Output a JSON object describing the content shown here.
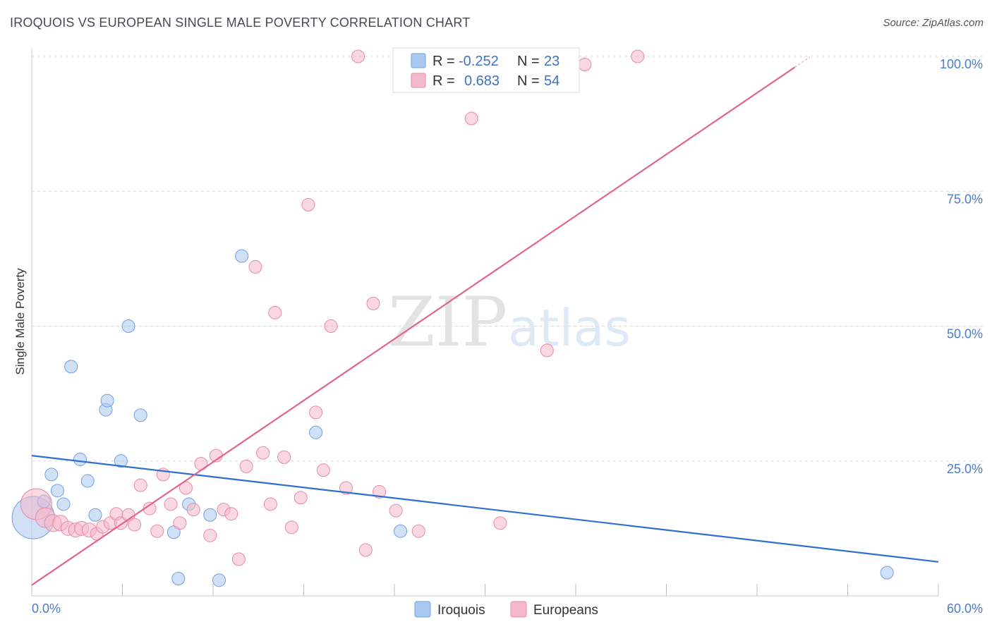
{
  "title": "IROQUOIS VS EUROPEAN SINGLE MALE POVERTY CORRELATION CHART",
  "source": "Source: ZipAtlas.com",
  "legend": {
    "rows": [
      {
        "r_label": "R =",
        "r_value": "-0.252",
        "n_label": "N =",
        "n_value": "23",
        "color": "#a9c8f0"
      },
      {
        "r_label": "R =",
        "r_value": "0.683",
        "n_label": "N =",
        "n_value": "54",
        "color": "#f6b8cb"
      }
    ]
  },
  "watermark": {
    "zip": "ZIP",
    "atlas": "atlas"
  },
  "chart_data": {
    "type": "scatter",
    "title": "IROQUOIS VS EUROPEAN SINGLE MALE POVERTY CORRELATION CHART",
    "xlabel": "",
    "ylabel": "Single Male Poverty",
    "xlim": [
      0,
      60
    ],
    "ylim": [
      0,
      100
    ],
    "x_tick_labels": [
      "0.0%",
      "60.0%"
    ],
    "y_tick_labels": [
      "25.0%",
      "50.0%",
      "75.0%",
      "100.0%"
    ],
    "y_ticks": [
      25,
      50,
      75,
      100
    ],
    "legend_position": "bottom-center",
    "series": [
      {
        "name": "Iroquois",
        "color": "#a9c8f0",
        "edge": "#6f9fdc",
        "trend_color": "#2f6fce",
        "trend": [
          [
            0,
            26.0
          ],
          [
            60,
            6.3
          ]
        ],
        "points": [
          [
            0.1,
            14.5
          ],
          [
            0.8,
            17.5
          ],
          [
            1.3,
            22.5
          ],
          [
            1.7,
            19.5
          ],
          [
            2.1,
            17.0
          ],
          [
            2.6,
            42.5
          ],
          [
            3.2,
            25.3
          ],
          [
            3.7,
            21.3
          ],
          [
            4.2,
            15.0
          ],
          [
            4.9,
            34.5
          ],
          [
            5.0,
            36.2
          ],
          [
            5.9,
            25.0
          ],
          [
            6.4,
            50.0
          ],
          [
            7.2,
            33.5
          ],
          [
            9.4,
            11.8
          ],
          [
            9.7,
            3.2
          ],
          [
            10.4,
            17.0
          ],
          [
            11.8,
            15.0
          ],
          [
            12.4,
            2.9
          ],
          [
            13.9,
            63.0
          ],
          [
            18.8,
            30.3
          ],
          [
            24.4,
            12.0
          ],
          [
            56.6,
            4.3
          ]
        ],
        "sizes": [
          30,
          9,
          9,
          9,
          9,
          9,
          9,
          9,
          9,
          9,
          9,
          9,
          9,
          9,
          9,
          9,
          9,
          9,
          9,
          9,
          9,
          9,
          9
        ]
      },
      {
        "name": "Europeans",
        "color": "#f6b8cb",
        "edge": "#e68aa8",
        "trend_color": "#e0648c",
        "trend": [
          [
            0,
            2.0
          ],
          [
            50.5,
            98.0
          ]
        ],
        "points": [
          [
            0.3,
            17.0
          ],
          [
            0.9,
            14.5
          ],
          [
            1.4,
            13.5
          ],
          [
            1.9,
            13.5
          ],
          [
            2.4,
            12.5
          ],
          [
            2.9,
            12.2
          ],
          [
            3.3,
            12.5
          ],
          [
            3.8,
            12.2
          ],
          [
            4.3,
            11.5
          ],
          [
            4.7,
            12.8
          ],
          [
            5.2,
            13.5
          ],
          [
            5.6,
            15.2
          ],
          [
            5.9,
            13.5
          ],
          [
            6.4,
            15.0
          ],
          [
            6.8,
            13.2
          ],
          [
            7.2,
            20.5
          ],
          [
            7.8,
            16.2
          ],
          [
            8.3,
            12.0
          ],
          [
            8.7,
            22.5
          ],
          [
            9.2,
            17.0
          ],
          [
            9.8,
            13.5
          ],
          [
            10.2,
            20.0
          ],
          [
            10.7,
            16.0
          ],
          [
            11.2,
            24.5
          ],
          [
            11.8,
            11.2
          ],
          [
            12.2,
            26.0
          ],
          [
            12.7,
            16.0
          ],
          [
            13.2,
            15.2
          ],
          [
            13.7,
            6.8
          ],
          [
            14.2,
            24.0
          ],
          [
            14.8,
            61.0
          ],
          [
            15.3,
            26.5
          ],
          [
            15.8,
            17.0
          ],
          [
            16.1,
            52.5
          ],
          [
            16.7,
            25.7
          ],
          [
            17.2,
            12.7
          ],
          [
            17.8,
            18.2
          ],
          [
            18.3,
            72.5
          ],
          [
            18.8,
            34.0
          ],
          [
            19.3,
            23.3
          ],
          [
            19.8,
            50.0
          ],
          [
            20.8,
            20.0
          ],
          [
            21.6,
            100.0
          ],
          [
            22.1,
            8.5
          ],
          [
            22.6,
            54.2
          ],
          [
            23.0,
            19.3
          ],
          [
            24.1,
            15.8
          ],
          [
            25.6,
            12.0
          ],
          [
            29.1,
            88.5
          ],
          [
            31.0,
            13.5
          ],
          [
            31.5,
            100.0
          ],
          [
            34.1,
            45.5
          ],
          [
            36.6,
            98.5
          ],
          [
            40.1,
            100.0
          ]
        ],
        "sizes": [
          22,
          14,
          12,
          11,
          10,
          10,
          10,
          10,
          9,
          9,
          9,
          9,
          9,
          9,
          9,
          9,
          9,
          9,
          9,
          9,
          9,
          9,
          9,
          9,
          9,
          9,
          9,
          9,
          9,
          9,
          9,
          9,
          9,
          9,
          9,
          9,
          9,
          9,
          9,
          9,
          9,
          9,
          9,
          9,
          9,
          9,
          9,
          9,
          9,
          9,
          9,
          9,
          9,
          9
        ]
      }
    ]
  }
}
